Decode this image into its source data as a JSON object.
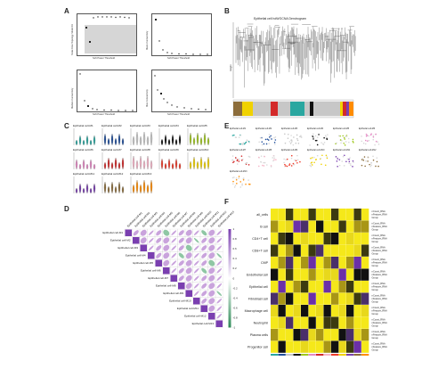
{
  "panels": {
    "A": {
      "label": "A",
      "plots": [
        {
          "xlabel": "Soft Power Threshold",
          "ylabel": "Scale Free Topology Model Fit"
        },
        {
          "xlabel": "Soft Power Threshold",
          "ylabel": "Mean Connectivity"
        },
        {
          "xlabel": "Soft Power Threshold",
          "ylabel": "Median Connectivity"
        },
        {
          "xlabel": "Soft Power Threshold",
          "ylabel": "Max Connectivity"
        }
      ]
    },
    "B": {
      "label": "B",
      "title": "Epithelial cell hdWGCNA Dendrogram",
      "ylabel": "Height"
    },
    "C": {
      "label": "C",
      "modules": [
        "Epithelial cell-M1",
        "Epithelial cell-M2",
        "Epithelial cell-M3",
        "Epithelial cell-M4",
        "Epithelial cell-M5",
        "Epithelial cell-M6",
        "Epithelial cell-M7",
        "Epithelial cell-M8",
        "Epithelial cell-M9",
        "Epithelial cell-M10",
        "Epithelial cell-M11",
        "Epithelial cell-M12",
        "Epithelial cell-M13"
      ]
    },
    "D": {
      "label": "D",
      "rows": [
        "Epithelial cell-M1",
        "Epithelial cell-M2",
        "Epithelial cell-M3",
        "Epithelial cell-M4",
        "Epithelial cell-M5",
        "Epithelial cell-M6",
        "Epithelial cell-M7",
        "Epithelial cell-M8",
        "Epithelial cell-M9",
        "Epithelial cell-M10",
        "Epithelial cell-M11",
        "Epithelial cell-M12",
        "Epithelial cell-M13"
      ],
      "scale": [
        "1",
        "0.8",
        "0.6",
        "0.4",
        "0.2",
        "0",
        "-0.2",
        "-0.4",
        "-0.6",
        "-0.8",
        "-1"
      ]
    },
    "E": {
      "label": "E",
      "modules": [
        "Epithelial cell-M1",
        "Epithelial cell-M2",
        "Epithelial cell-M3",
        "Epithelial cell-M4",
        "Epithelial cell-M5",
        "Epithelial cell-M6",
        "Epithelial cell-M7",
        "Epithelial cell-M8",
        "Epithelial cell-M9",
        "Epithelial cell-M10",
        "Epithelial cell-M11",
        "Epithelial cell-M12",
        "Epithelial cell-M13"
      ]
    },
    "F": {
      "label": "F",
      "rows": [
        "all_cells",
        "B cell",
        "CD4+T cell",
        "CD8+T cell",
        "CMP",
        "Endothelial cell",
        "Epithelial cell",
        "Fibroblast cell",
        "Macrophage cell",
        "Neutrophil",
        "Plasma cells",
        "Progenitor cell"
      ],
      "side": "nCount_RNA\nnFeature_RNA\nGroup"
    }
  },
  "colors": {
    "module": [
      "#2aa7a0",
      "#1f4e9c",
      "#c7c7c7",
      "#111111",
      "#a0c81e",
      "#e38ac4",
      "#d32a2a",
      "#f5b6c8",
      "#ee3b2a",
      "#f0d200",
      "#7a3fb0",
      "#8c6d3b",
      "#ff8c00"
    ],
    "heat_hi": "#f5e81a",
    "heat_mid": "#111111",
    "heat_lo": "#6b2fa8",
    "corr_pos": "#9b59b6",
    "corr_neg": "#2e8b57"
  }
}
